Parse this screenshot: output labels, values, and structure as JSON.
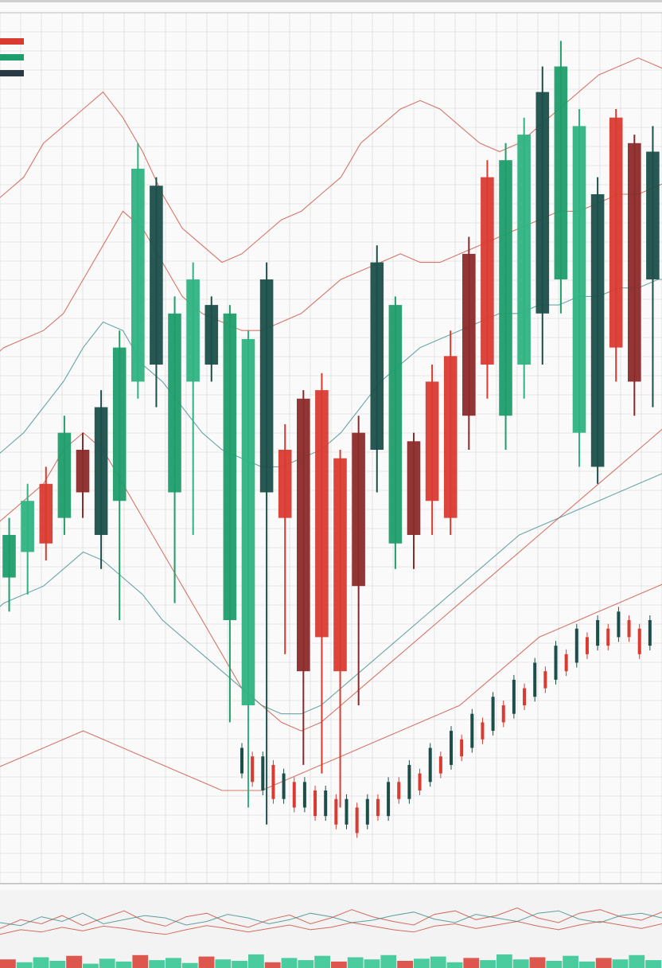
{
  "chart_data": {
    "type": "candlestick",
    "title": "",
    "xlabel": "",
    "ylabel": "",
    "ylim": [
      0,
      100
    ],
    "grid": true,
    "legend": "top-left",
    "colors": {
      "up": "#1f9d6b",
      "up_light": "#2fb383",
      "up_dark": "#1c4f4a",
      "down": "#d93b30",
      "down_dark": "#8c2a2a",
      "grid": "#d6d6d6",
      "background": "#fafafa",
      "indicator_red": "#c94a3a",
      "indicator_teal": "#3a8a88",
      "volume_green": "#2cc48f"
    },
    "legend_items": [
      {
        "color": "#d93b30"
      },
      {
        "color": "#1f9d6b"
      },
      {
        "color": "#2a3a44"
      }
    ],
    "candles": [
      {
        "o": 35,
        "c": 40,
        "h": 42,
        "l": 31
      },
      {
        "o": 38,
        "c": 44,
        "h": 46,
        "l": 33
      },
      {
        "o": 46,
        "c": 39,
        "h": 48,
        "l": 37
      },
      {
        "o": 42,
        "c": 52,
        "h": 54,
        "l": 40
      },
      {
        "o": 50,
        "c": 45,
        "h": 52,
        "l": 42
      },
      {
        "o": 40,
        "c": 55,
        "h": 57,
        "l": 36
      },
      {
        "o": 44,
        "c": 62,
        "h": 64,
        "l": 30
      },
      {
        "o": 58,
        "c": 83,
        "h": 86,
        "l": 56
      },
      {
        "o": 60,
        "c": 81,
        "h": 82,
        "l": 55
      },
      {
        "o": 45,
        "c": 66,
        "h": 68,
        "l": 32
      },
      {
        "o": 58,
        "c": 70,
        "h": 72,
        "l": 40
      },
      {
        "o": 60,
        "c": 67,
        "h": 68,
        "l": 58
      },
      {
        "o": 30,
        "c": 66,
        "h": 67,
        "l": 18
      },
      {
        "o": 20,
        "c": 63,
        "h": 64,
        "l": 8
      },
      {
        "o": 45,
        "c": 70,
        "h": 72,
        "l": 6
      },
      {
        "o": 50,
        "c": 42,
        "h": 53,
        "l": 26
      },
      {
        "o": 56,
        "c": 24,
        "h": 57,
        "l": 13
      },
      {
        "o": 57,
        "c": 28,
        "h": 59,
        "l": 12
      },
      {
        "o": 49,
        "c": 24,
        "h": 50,
        "l": 8
      },
      {
        "o": 52,
        "c": 34,
        "h": 54,
        "l": 20
      },
      {
        "o": 50,
        "c": 72,
        "h": 74,
        "l": 45
      },
      {
        "o": 39,
        "c": 67,
        "h": 68,
        "l": 36
      },
      {
        "o": 51,
        "c": 40,
        "h": 52,
        "l": 36
      },
      {
        "o": 58,
        "c": 44,
        "h": 60,
        "l": 40
      },
      {
        "o": 61,
        "c": 42,
        "h": 64,
        "l": 40
      },
      {
        "o": 73,
        "c": 54,
        "h": 75,
        "l": 50
      },
      {
        "o": 82,
        "c": 60,
        "h": 84,
        "l": 56
      },
      {
        "o": 54,
        "c": 84,
        "h": 86,
        "l": 50
      },
      {
        "o": 60,
        "c": 87,
        "h": 89,
        "l": 56
      },
      {
        "o": 66,
        "c": 92,
        "h": 95,
        "l": 60
      },
      {
        "o": 70,
        "c": 95,
        "h": 98,
        "l": 66
      },
      {
        "o": 52,
        "c": 88,
        "h": 90,
        "l": 48
      },
      {
        "o": 48,
        "c": 80,
        "h": 82,
        "l": 46
      },
      {
        "o": 89,
        "c": 62,
        "h": 90,
        "l": 58
      },
      {
        "o": 86,
        "c": 58,
        "h": 87,
        "l": 54
      },
      {
        "o": 70,
        "c": 85,
        "h": 88,
        "l": 55
      }
    ],
    "indicator_lines": [
      {
        "color": "#c94a3a",
        "values": [
          78,
          80,
          82,
          86,
          88,
          90,
          92,
          89,
          85,
          80,
          76,
          74,
          72,
          73,
          75,
          77,
          78,
          80,
          82,
          86,
          88,
          90,
          91,
          90,
          88,
          86,
          85,
          86,
          88,
          90,
          92,
          94,
          95,
          96,
          95,
          94
        ]
      },
      {
        "color": "#c94a3a",
        "values": [
          60,
          62,
          63,
          64,
          66,
          70,
          74,
          78,
          76,
          72,
          68,
          66,
          65,
          64,
          64,
          65,
          66,
          68,
          70,
          71,
          72,
          73,
          72,
          72,
          73,
          74,
          75,
          76,
          77,
          78,
          78,
          79,
          80,
          80,
          81,
          82
        ]
      },
      {
        "color": "#3a8a88",
        "values": [
          48,
          50,
          52,
          55,
          58,
          62,
          65,
          64,
          60,
          58,
          55,
          52,
          50,
          49,
          48,
          48,
          49,
          50,
          52,
          55,
          58,
          60,
          62,
          63,
          64,
          65,
          66,
          66,
          67,
          67,
          68,
          68,
          69,
          69,
          70,
          70
        ]
      },
      {
        "color": "#c94a3a",
        "values": [
          40,
          42,
          44,
          46,
          50,
          52,
          50,
          46,
          42,
          38,
          34,
          30,
          26,
          22,
          20,
          18,
          17,
          18,
          20,
          22,
          24,
          26,
          28,
          30,
          32,
          34,
          36,
          38,
          40,
          42,
          44,
          46,
          48,
          50,
          52,
          54
        ]
      },
      {
        "color": "#3a8a88",
        "values": [
          30,
          32,
          33,
          34,
          36,
          38,
          37,
          35,
          33,
          30,
          28,
          26,
          24,
          22,
          20,
          19,
          19,
          20,
          22,
          24,
          26,
          28,
          30,
          32,
          34,
          36,
          38,
          40,
          41,
          42,
          43,
          44,
          45,
          46,
          47,
          48
        ]
      },
      {
        "color": "#c94a3a",
        "values": [
          12,
          13,
          14,
          15,
          16,
          17,
          16,
          15,
          14,
          13,
          12,
          11,
          10,
          10,
          10,
          11,
          12,
          13,
          14,
          15,
          16,
          17,
          18,
          19,
          20,
          22,
          24,
          26,
          28,
          29,
          30,
          31,
          32,
          33,
          34,
          35
        ]
      }
    ],
    "small_candles": [
      {
        "o": 12,
        "c": 15
      },
      {
        "o": 14,
        "c": 11
      },
      {
        "o": 10,
        "c": 14
      },
      {
        "o": 13,
        "c": 9
      },
      {
        "o": 9,
        "c": 12
      },
      {
        "o": 11,
        "c": 8
      },
      {
        "o": 8,
        "c": 11
      },
      {
        "o": 10,
        "c": 7
      },
      {
        "o": 7,
        "c": 10
      },
      {
        "o": 9,
        "c": 6
      },
      {
        "o": 6,
        "c": 9
      },
      {
        "o": 8,
        "c": 5
      },
      {
        "o": 6,
        "c": 9
      },
      {
        "o": 9,
        "c": 7
      },
      {
        "o": 7,
        "c": 11
      },
      {
        "o": 11,
        "c": 9
      },
      {
        "o": 9,
        "c": 13
      },
      {
        "o": 12,
        "c": 10
      },
      {
        "o": 11,
        "c": 15
      },
      {
        "o": 14,
        "c": 12
      },
      {
        "o": 13,
        "c": 17
      },
      {
        "o": 16,
        "c": 14
      },
      {
        "o": 15,
        "c": 19
      },
      {
        "o": 18,
        "c": 16
      },
      {
        "o": 17,
        "c": 21
      },
      {
        "o": 20,
        "c": 18
      },
      {
        "o": 19,
        "c": 23
      },
      {
        "o": 22,
        "c": 20
      },
      {
        "o": 21,
        "c": 25
      },
      {
        "o": 24,
        "c": 22
      },
      {
        "o": 23,
        "c": 27
      },
      {
        "o": 26,
        "c": 24
      },
      {
        "o": 25,
        "c": 29
      },
      {
        "o": 28,
        "c": 26
      },
      {
        "o": 27,
        "c": 30
      },
      {
        "o": 29,
        "c": 27
      },
      {
        "o": 28,
        "c": 31
      },
      {
        "o": 30,
        "c": 28
      },
      {
        "o": 29,
        "c": 26
      },
      {
        "o": 27,
        "c": 30
      }
    ],
    "lower_panel": {
      "lines": [
        {
          "color": "#c94a3a",
          "values": [
            40,
            55,
            48,
            62,
            45,
            58,
            70,
            52,
            44,
            60,
            66,
            50,
            42,
            55,
            63,
            48,
            58,
            72,
            60,
            52,
            46,
            64,
            70,
            55,
            62,
            75,
            58,
            50,
            66,
            72,
            60,
            54,
            68
          ]
        },
        {
          "color": "#3a8a88",
          "values": [
            50,
            45,
            60,
            52,
            66,
            48,
            55,
            62,
            58,
            46,
            52,
            64,
            58,
            48,
            55,
            66,
            60,
            50,
            54,
            62,
            68,
            56,
            50,
            64,
            58,
            52,
            66,
            70,
            56,
            50,
            62,
            66,
            58
          ]
        },
        {
          "color": "#c94a3a",
          "values": [
            30,
            38,
            34,
            42,
            36,
            44,
            40,
            34,
            30,
            38,
            45,
            40,
            34,
            40,
            46,
            38,
            42,
            50,
            44,
            38,
            34,
            44,
            48,
            40,
            46,
            52,
            44,
            38,
            46,
            52,
            46,
            40,
            48
          ]
        }
      ],
      "volume": [
        60,
        40,
        75,
        50,
        85,
        30,
        65,
        45,
        90,
        55,
        70,
        35,
        80,
        60,
        50,
        95,
        40,
        70,
        55,
        85,
        45,
        75,
        60,
        90,
        50,
        65,
        80,
        40,
        70,
        55,
        95,
        60,
        75,
        50,
        85,
        45,
        70,
        60,
        90,
        55
      ]
    }
  }
}
